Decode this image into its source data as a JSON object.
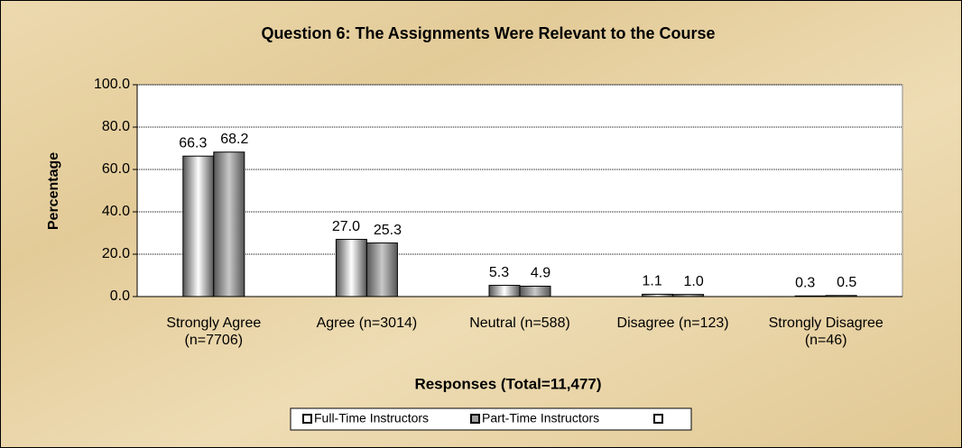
{
  "chart_data": {
    "type": "bar",
    "title": "Question 6:  The Assignments Were Relevant to the Course",
    "x_label": "Responses (Total=11,477)",
    "y_label": "Percentage",
    "categories": [
      "Strongly Agree (n=7706)",
      "Agree (n=3014)",
      "Neutral (n=588)",
      "Disagree (n=123)",
      "Strongly Disagree (n=46)"
    ],
    "series": [
      {
        "name": "Full-Time Instructors",
        "color": "#ffffff",
        "values": [
          66.3,
          27.0,
          5.3,
          1.1,
          0.3
        ],
        "value_labels": [
          "66.3",
          "27.0",
          "5.3",
          "1.1",
          "0.3"
        ]
      },
      {
        "name": "Part-Time Instructors",
        "color": "#a0a0a0",
        "values": [
          68.2,
          25.3,
          4.9,
          1.0,
          0.5
        ],
        "value_labels": [
          "68.2",
          "25.3",
          "4.9",
          "1.0",
          "0.5"
        ]
      }
    ],
    "ylim": [
      0,
      100
    ],
    "yticks": [
      {
        "value": 0,
        "label": "0.0"
      },
      {
        "value": 20,
        "label": "20.0"
      },
      {
        "value": 40,
        "label": "40.0"
      },
      {
        "value": 60,
        "label": "60.0"
      },
      {
        "value": 80,
        "label": "80.0"
      },
      {
        "value": 100,
        "label": "100.0"
      }
    ],
    "grid": true,
    "legend": "bottom"
  }
}
